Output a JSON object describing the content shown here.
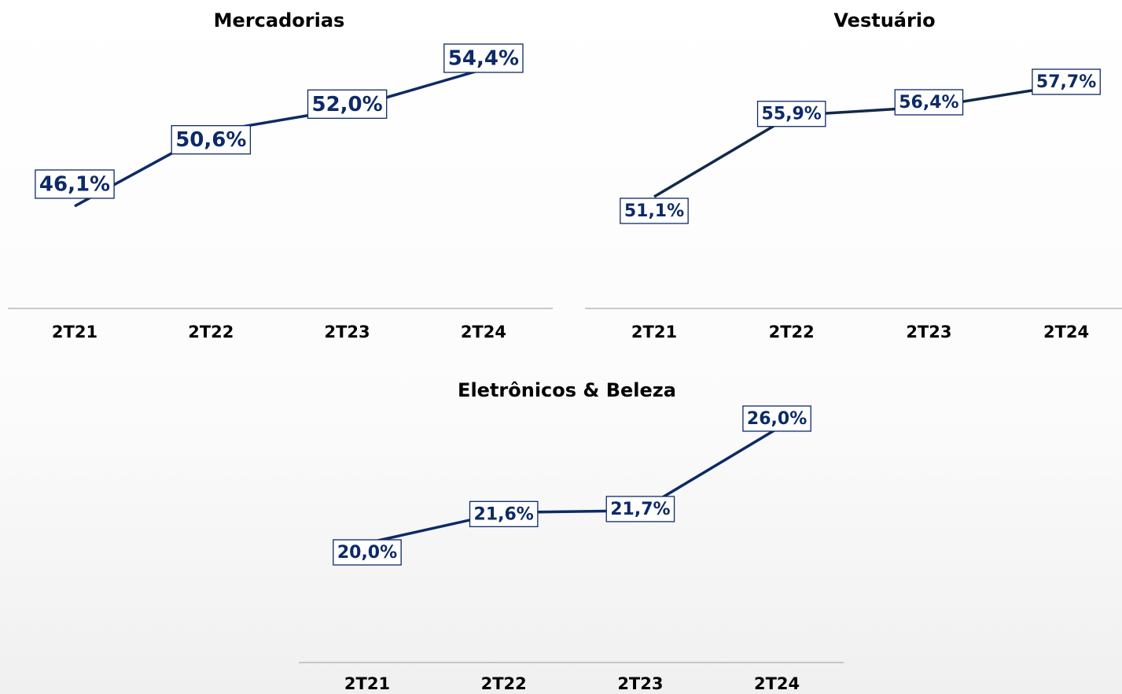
{
  "chart_data": [
    {
      "type": "line",
      "title": "Mercadorias",
      "categories": [
        "2T21",
        "2T22",
        "2T23",
        "2T24"
      ],
      "values": [
        46.1,
        50.6,
        52.0,
        54.4
      ],
      "value_labels": [
        "46,1%",
        "50,6%",
        "52,0%",
        "54,4%"
      ],
      "color": "#0d2a66"
    },
    {
      "type": "line",
      "title": "Vestuário",
      "categories": [
        "2T21",
        "2T22",
        "2T23",
        "2T24"
      ],
      "values": [
        51.1,
        55.9,
        56.4,
        57.7
      ],
      "value_labels": [
        "51,1%",
        "55,9%",
        "56,4%",
        "57,7%"
      ],
      "color": "#12294a"
    },
    {
      "type": "line",
      "title": "Eletrônicos & Beleza",
      "categories": [
        "2T21",
        "2T22",
        "2T23",
        "2T24"
      ],
      "values": [
        20.0,
        21.6,
        21.7,
        26.0
      ],
      "value_labels": [
        "20,0%",
        "21,6%",
        "21,7%",
        "26,0%"
      ],
      "color": "#0d2a66"
    }
  ]
}
